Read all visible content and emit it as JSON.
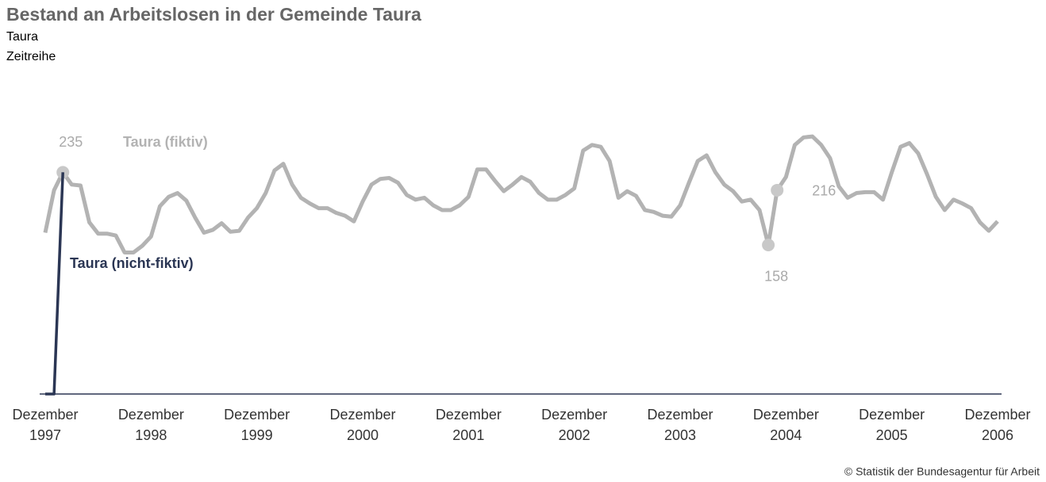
{
  "chart_data": {
    "type": "line",
    "title": "Bestand an Arbeitslosen in der Gemeinde Taura",
    "subtitle": "Taura",
    "subtitle2": "Zeitreihe",
    "source": "© Statistik der Bundesagentur für Arbeit",
    "categories": [
      "Dezember 1997",
      null,
      null,
      null,
      null,
      null,
      null,
      null,
      null,
      null,
      null,
      null,
      "Dezember 1998",
      null,
      null,
      null,
      null,
      null,
      null,
      null,
      null,
      null,
      null,
      null,
      "Dezember 1999",
      null,
      null,
      null,
      null,
      null,
      null,
      null,
      null,
      null,
      null,
      null,
      "Dezember 2000",
      null,
      null,
      null,
      null,
      null,
      null,
      null,
      null,
      null,
      null,
      null,
      "Dezember 2001",
      null,
      null,
      null,
      null,
      null,
      null,
      null,
      null,
      null,
      null,
      null,
      "Dezember 2002",
      null,
      null,
      null,
      null,
      null,
      null,
      null,
      null,
      null,
      null,
      null,
      "Dezember 2003",
      null,
      null,
      null,
      null,
      null,
      null,
      null,
      null,
      null,
      null,
      null,
      "Dezember 2004",
      null,
      null,
      null,
      null,
      null,
      null,
      null,
      null,
      null,
      null,
      null,
      "Dezember 2005",
      null,
      null,
      null,
      null,
      null,
      null,
      null,
      null,
      null,
      null,
      null,
      "Dezember 2006"
    ],
    "ylim": [
      0,
      300
    ],
    "series": [
      {
        "name": "Taura (fiktiv)",
        "color": "#b3b3b3",
        "values": [
          171,
          216,
          235,
          222,
          221,
          182,
          170,
          170,
          168,
          150,
          150,
          157,
          167,
          199,
          209,
          213,
          205,
          187,
          171,
          174,
          181,
          172,
          173,
          187,
          197,
          213,
          237,
          244,
          222,
          208,
          202,
          197,
          197,
          192,
          189,
          183,
          204,
          222,
          228,
          229,
          224,
          211,
          206,
          208,
          200,
          195,
          195,
          200,
          209,
          238,
          238,
          226,
          215,
          222,
          230,
          225,
          213,
          206,
          206,
          211,
          218,
          258,
          264,
          262,
          247,
          208,
          215,
          210,
          195,
          193,
          189,
          188,
          200,
          224,
          247,
          253,
          235,
          222,
          215,
          204,
          206,
          195,
          158,
          216,
          230,
          264,
          272,
          273,
          264,
          250,
          220,
          208,
          213,
          214,
          214,
          206,
          235,
          262,
          266,
          255,
          233,
          209,
          195,
          206,
          202,
          197,
          182,
          173,
          183
        ],
        "labeled_points": [
          {
            "index": 2,
            "position": "above"
          },
          {
            "index": 82,
            "position": "below"
          },
          {
            "index": 83,
            "position": "right"
          }
        ]
      },
      {
        "name": "Taura (nicht-fiktiv)",
        "color": "#2b3654",
        "values": [
          0,
          0,
          235,
          null,
          null,
          null,
          null,
          null,
          null,
          null,
          null,
          null,
          null,
          null,
          null,
          null,
          null,
          null,
          null,
          null,
          null,
          null,
          null,
          null,
          null,
          null,
          null,
          null,
          null,
          null,
          null,
          null,
          null,
          null,
          null,
          null,
          null,
          null,
          null,
          null,
          null,
          null,
          null,
          null,
          null,
          null,
          null,
          null,
          null,
          null,
          null,
          null,
          null,
          null,
          null,
          null,
          null,
          null,
          null,
          null,
          null,
          null,
          null,
          null,
          null,
          null,
          null,
          null,
          null,
          null,
          null,
          null,
          null,
          null,
          null,
          null,
          null,
          null,
          null,
          null,
          null,
          null,
          null,
          null,
          null,
          null,
          null,
          null,
          null,
          null,
          null,
          null,
          null,
          null,
          null,
          null,
          null,
          null,
          null,
          null,
          null,
          null,
          null,
          null,
          null,
          null,
          null,
          null,
          null
        ]
      }
    ]
  }
}
